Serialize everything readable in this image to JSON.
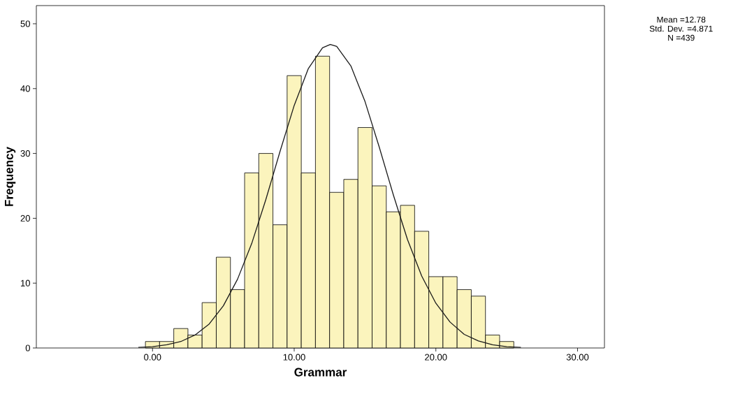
{
  "chart_data": {
    "type": "histogram",
    "xlabel": "Grammar",
    "ylabel": "Frequency",
    "bins": [
      -0.5,
      0.5,
      1.5,
      2.5,
      3.5,
      4.5,
      5.5,
      6.5,
      7.5,
      8.5,
      9.5,
      10.5,
      11.5,
      12.5,
      13.5,
      14.5,
      15.5,
      16.5,
      17.5,
      18.5,
      19.5,
      20.5,
      21.5,
      22.5,
      23.5,
      24.5,
      25.5
    ],
    "values": [
      1,
      1,
      3,
      2,
      7,
      14,
      9,
      27,
      30,
      19,
      42,
      27,
      45,
      24,
      26,
      34,
      25,
      21,
      22,
      18,
      11,
      11,
      9,
      8,
      2,
      1
    ],
    "color": "#fbf4bd",
    "series": [
      {
        "type": "line",
        "color": "#1a1a1a",
        "x": [
          -1,
          0,
          1,
          2,
          3,
          4,
          5,
          6,
          7,
          8,
          9,
          10,
          11,
          12,
          12.55,
          13,
          14,
          15,
          16,
          17,
          18,
          19,
          20,
          21,
          22,
          23,
          24,
          25,
          26
        ],
        "values": [
          0.1,
          0.2,
          0.5,
          1.0,
          2.0,
          3.7,
          6.5,
          10.6,
          16.1,
          22.9,
          30.3,
          37.4,
          43.1,
          46.3,
          46.8,
          46.5,
          43.5,
          38.0,
          31.0,
          23.6,
          16.7,
          11.1,
          6.9,
          4.0,
          2.1,
          1.1,
          0.5,
          0.2,
          0.1
        ]
      }
    ],
    "xlim": [
      -8.2,
      31.9
    ],
    "ylim": [
      0,
      52.8
    ],
    "xticks": [
      {
        "value": 0,
        "label": "0.00"
      },
      {
        "value": 10,
        "label": "10.00"
      },
      {
        "value": 20,
        "label": "20.00"
      },
      {
        "value": 30,
        "label": "30.00"
      }
    ],
    "yticks": [
      0,
      10,
      20,
      30,
      40,
      50
    ],
    "annotations": [
      "Mean =12.78",
      "Std. Dev. =4.871",
      "N =439"
    ]
  }
}
